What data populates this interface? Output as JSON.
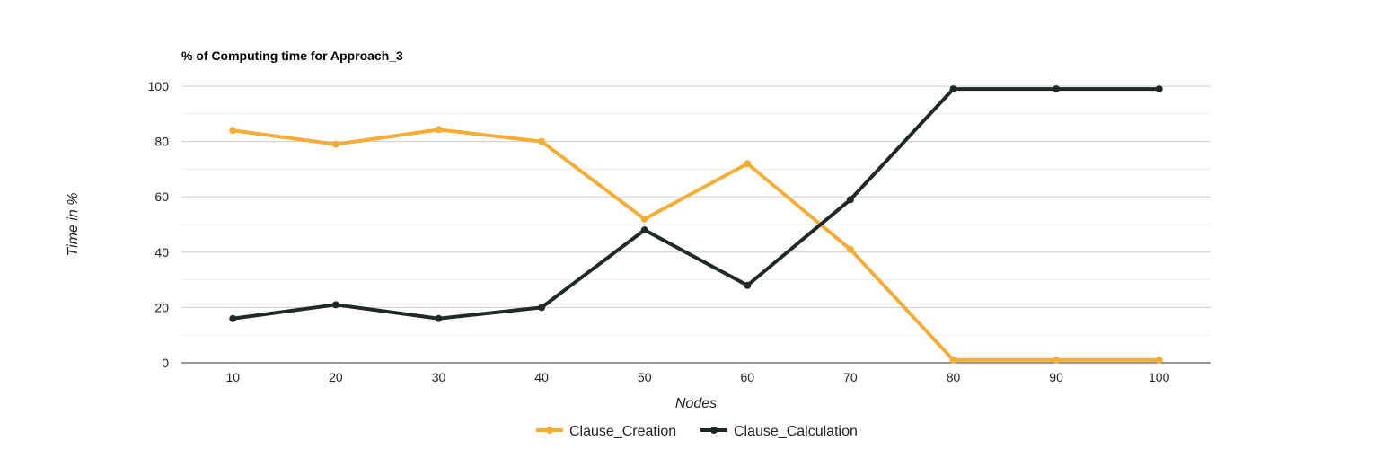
{
  "chart_data": {
    "type": "line",
    "title": "% of Computing time for Approach_3",
    "xlabel": "Nodes",
    "ylabel": "Time in %",
    "x": [
      10,
      20,
      30,
      40,
      50,
      60,
      70,
      80,
      90,
      100
    ],
    "ylim": [
      0,
      100
    ],
    "yticks": [
      0,
      20,
      40,
      60,
      80,
      100
    ],
    "grid": true,
    "legend_position": "bottom",
    "series": [
      {
        "name": "Clause_Creation",
        "color": "#f4ad36",
        "values": [
          84,
          79,
          84.3,
          80,
          52,
          72,
          41,
          1,
          1,
          1
        ]
      },
      {
        "name": "Clause_Calculation",
        "color": "#1f2a25",
        "values": [
          16,
          21,
          16,
          20,
          48,
          28,
          59,
          99,
          99,
          99
        ]
      }
    ]
  }
}
